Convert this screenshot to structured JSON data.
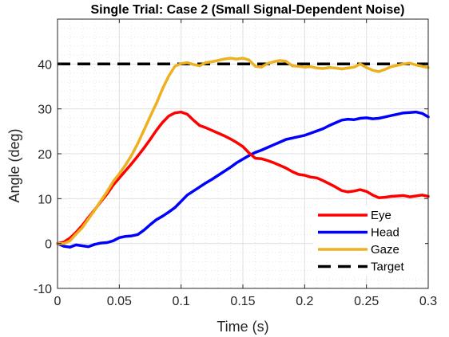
{
  "chart_data": {
    "type": "line",
    "title": "Single Trial: Case 2 (Small Signal-Dependent Noise)",
    "xlabel": "Time (s)",
    "ylabel": "Angle (deg)",
    "xlim": [
      0,
      0.3
    ],
    "ylim": [
      -10,
      50
    ],
    "xticks": [
      0,
      0.05,
      0.1,
      0.15,
      0.2,
      0.25,
      0.3
    ],
    "xtick_labels": [
      "0",
      "0.05",
      "0.1",
      "0.15",
      "0.2",
      "0.25",
      "0.3"
    ],
    "yticks": [
      -10,
      0,
      10,
      20,
      30,
      40
    ],
    "ytick_labels": [
      "-10",
      "0",
      "10",
      "20",
      "30",
      "40"
    ],
    "grid": true,
    "minor_grid": true,
    "legend_position": "bottom-right",
    "series": [
      {
        "name": "Eye",
        "color": "#ff0000",
        "style": "solid",
        "x": [
          0,
          0.005,
          0.01,
          0.015,
          0.02,
          0.025,
          0.03,
          0.035,
          0.04,
          0.045,
          0.05,
          0.055,
          0.06,
          0.065,
          0.07,
          0.075,
          0.08,
          0.085,
          0.09,
          0.095,
          0.1,
          0.105,
          0.11,
          0.115,
          0.12,
          0.125,
          0.13,
          0.135,
          0.14,
          0.145,
          0.15,
          0.155,
          0.16,
          0.165,
          0.17,
          0.175,
          0.18,
          0.185,
          0.19,
          0.195,
          0.2,
          0.205,
          0.21,
          0.215,
          0.22,
          0.225,
          0.23,
          0.235,
          0.24,
          0.245,
          0.25,
          0.255,
          0.26,
          0.265,
          0.27,
          0.275,
          0.28,
          0.285,
          0.29,
          0.295,
          0.3
        ],
        "y": [
          0,
          0.3,
          1.2,
          2.5,
          4,
          5.8,
          7.5,
          9.3,
          11,
          13,
          14.6,
          16.2,
          17.8,
          19.5,
          21.3,
          23.2,
          25.2,
          27,
          28.4,
          29.1,
          29.3,
          28.8,
          27.5,
          26.3,
          25.8,
          25.2,
          24.6,
          24,
          23.3,
          22.5,
          21.6,
          20.2,
          19,
          18.9,
          18.5,
          18,
          17.4,
          16.8,
          16,
          15.4,
          15.2,
          14.8,
          14.6,
          14,
          13.3,
          12.6,
          11.8,
          11.5,
          11.7,
          12,
          11.6,
          10.8,
          10.2,
          10.3,
          10.5,
          10.6,
          10.7,
          10.4,
          10.6,
          10.8,
          10.5
        ]
      },
      {
        "name": "Head",
        "color": "#0000ff",
        "style": "solid",
        "x": [
          0,
          0.005,
          0.01,
          0.015,
          0.02,
          0.025,
          0.03,
          0.035,
          0.04,
          0.045,
          0.05,
          0.055,
          0.06,
          0.065,
          0.07,
          0.075,
          0.08,
          0.085,
          0.09,
          0.095,
          0.1,
          0.105,
          0.11,
          0.115,
          0.12,
          0.125,
          0.13,
          0.135,
          0.14,
          0.145,
          0.15,
          0.155,
          0.16,
          0.165,
          0.17,
          0.175,
          0.18,
          0.185,
          0.19,
          0.195,
          0.2,
          0.205,
          0.21,
          0.215,
          0.22,
          0.225,
          0.23,
          0.235,
          0.24,
          0.245,
          0.25,
          0.255,
          0.26,
          0.265,
          0.27,
          0.275,
          0.28,
          0.285,
          0.29,
          0.295,
          0.3
        ],
        "y": [
          0,
          -0.6,
          -0.8,
          -0.3,
          -0.5,
          -0.7,
          -0.2,
          0.1,
          0.2,
          0.6,
          1.3,
          1.6,
          1.7,
          2,
          3,
          4.2,
          5.3,
          6.1,
          7,
          8,
          9.4,
          10.8,
          11.7,
          12.6,
          13.5,
          14.3,
          15.2,
          16.1,
          17,
          18,
          18.8,
          19.6,
          20.3,
          20.8,
          21.4,
          22,
          22.6,
          23.2,
          23.5,
          23.8,
          24.1,
          24.6,
          25.1,
          25.6,
          26.3,
          26.9,
          27.5,
          27.7,
          27.6,
          27.9,
          28,
          27.8,
          27.9,
          28.2,
          28.5,
          28.8,
          29.1,
          29.2,
          29.3,
          29,
          28.2
        ]
      },
      {
        "name": "Gaze",
        "color": "#edb120",
        "style": "solid",
        "x": [
          0,
          0.005,
          0.01,
          0.015,
          0.02,
          0.025,
          0.03,
          0.035,
          0.04,
          0.045,
          0.05,
          0.055,
          0.06,
          0.065,
          0.07,
          0.075,
          0.08,
          0.085,
          0.09,
          0.095,
          0.1,
          0.105,
          0.11,
          0.115,
          0.12,
          0.125,
          0.13,
          0.135,
          0.14,
          0.145,
          0.15,
          0.155,
          0.16,
          0.165,
          0.17,
          0.175,
          0.18,
          0.185,
          0.19,
          0.195,
          0.2,
          0.205,
          0.21,
          0.215,
          0.22,
          0.225,
          0.23,
          0.235,
          0.24,
          0.245,
          0.25,
          0.255,
          0.26,
          0.265,
          0.27,
          0.275,
          0.28,
          0.285,
          0.29,
          0.295,
          0.3
        ],
        "y": [
          0,
          0,
          0.6,
          2.1,
          3.5,
          5.5,
          7.4,
          9.5,
          11.5,
          13.8,
          15.5,
          17.5,
          19.7,
          22.3,
          25.3,
          28.3,
          31.2,
          34.5,
          37.3,
          39.5,
          40.1,
          40.3,
          39.9,
          39.6,
          40.3,
          40.5,
          40.8,
          41.1,
          41.3,
          41.1,
          41.3,
          40.9,
          39.5,
          39.3,
          40.1,
          40.5,
          40.8,
          40.6,
          39.6,
          39.5,
          39.3,
          39.4,
          39.1,
          39,
          39.2,
          39.1,
          38.9,
          39.1,
          39.3,
          40,
          39.2,
          38.6,
          38.3,
          38.8,
          39.4,
          39.7,
          40,
          40.2,
          39.8,
          39.5,
          39.2
        ]
      },
      {
        "name": "Target",
        "color": "#000000",
        "style": "dashed",
        "x": [
          0,
          0.3
        ],
        "y": [
          40,
          40
        ]
      }
    ]
  }
}
